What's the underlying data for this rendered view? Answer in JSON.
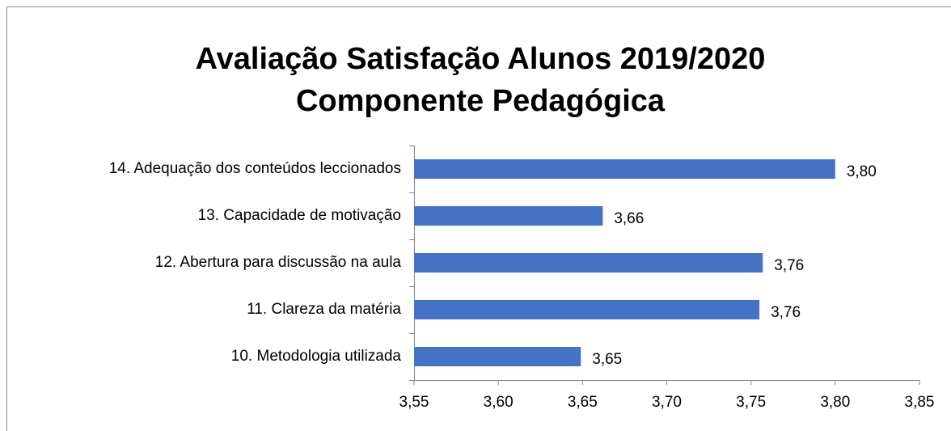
{
  "chart_data": {
    "type": "bar",
    "orientation": "horizontal",
    "title": [
      "Avaliação Satisfação Alunos 2019/2020",
      "Componente Pedagógica"
    ],
    "categories": [
      "14. Adequação dos conteúdos leccionados",
      "13. Capacidade de motivação",
      "12. Abertura para discussão na aula",
      "11. Clareza da matéria",
      "10. Metodologia utilizada"
    ],
    "values": [
      3.8,
      3.662,
      3.757,
      3.755,
      3.649
    ],
    "value_labels": [
      "3,80",
      "3,66",
      "3,76",
      "3,76",
      "3,65"
    ],
    "color": "#4472c4",
    "xlim": [
      3.55,
      3.85
    ],
    "xticks": [
      {
        "value": 3.55,
        "label": "3,55"
      },
      {
        "value": 3.6,
        "label": "3,60"
      },
      {
        "value": 3.65,
        "label": "3,65"
      },
      {
        "value": 3.7,
        "label": "3,70"
      },
      {
        "value": 3.75,
        "label": "3,75"
      },
      {
        "value": 3.8,
        "label": "3,80"
      },
      {
        "value": 3.85,
        "label": "3,85"
      }
    ],
    "grid": false
  }
}
